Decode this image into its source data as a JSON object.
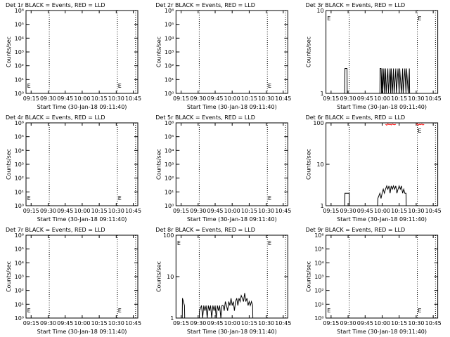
{
  "chart_data": [
    {
      "type": "line",
      "title": "Det 1r BLACK = Events, RED = LLD",
      "xlabel": "Start Time (30-Jan-18 09:11:40)",
      "ylabel": "Counts/sec",
      "ylog": true,
      "xlim": [
        10.5,
        109
      ],
      "ylim": [
        1,
        1000000
      ],
      "xticks": [
        {
          "value": 15,
          "label": "09:15"
        },
        {
          "value": 30,
          "label": "09:30"
        },
        {
          "value": 45,
          "label": "09:45"
        },
        {
          "value": 60,
          "label": "10:00"
        },
        {
          "value": 75,
          "label": "10:15"
        },
        {
          "value": 90,
          "label": "10:30"
        },
        {
          "value": 105,
          "label": "10:45"
        }
      ],
      "yticks": [
        {
          "value": 1,
          "label": "10⁰"
        },
        {
          "value": 10,
          "label": "10¹"
        },
        {
          "value": 100,
          "label": "10²"
        },
        {
          "value": 1000,
          "label": "10³"
        },
        {
          "value": 10000,
          "label": "10⁴"
        },
        {
          "value": 100000,
          "label": "10⁵"
        },
        {
          "value": 1000000,
          "label": "10⁶"
        }
      ],
      "vlines": [
        31,
        91,
        107
      ],
      "annotations": [
        {
          "text": "E",
          "x": 11.5,
          "position": "bottom"
        },
        {
          "text": "E",
          "x": 91.5,
          "position": "bottom"
        }
      ]
    },
    {
      "type": "line",
      "title": "Det 2r BLACK = Events, RED = LLD",
      "xlabel": "Start Time (30-Jan-18 09:11:40)",
      "ylabel": "Counts/sec",
      "ylog": true,
      "xlim": [
        10.5,
        109
      ],
      "ylim": [
        1,
        1000000
      ],
      "xticks": [
        {
          "value": 15,
          "label": "09:15"
        },
        {
          "value": 30,
          "label": "09:30"
        },
        {
          "value": 45,
          "label": "09:45"
        },
        {
          "value": 60,
          "label": "10:00"
        },
        {
          "value": 75,
          "label": "10:15"
        },
        {
          "value": 90,
          "label": "10:30"
        },
        {
          "value": 105,
          "label": "10:45"
        }
      ],
      "yticks": [
        {
          "value": 1,
          "label": "10⁰"
        },
        {
          "value": 10,
          "label": "10¹"
        },
        {
          "value": 100,
          "label": "10²"
        },
        {
          "value": 1000,
          "label": "10³"
        },
        {
          "value": 10000,
          "label": "10⁴"
        },
        {
          "value": 100000,
          "label": "10⁵"
        },
        {
          "value": 1000000,
          "label": "10⁶"
        }
      ],
      "vlines": [
        31,
        91,
        107
      ],
      "annotations": [
        {
          "text": "E",
          "x": 91.5,
          "position": "bottom"
        }
      ]
    },
    {
      "type": "line",
      "title": "Det 3r BLACK = Events, RED = LLD",
      "xlabel": "Start Time (30-Jan-18 09:11:40)",
      "ylabel": "Counts/sec",
      "ylog": true,
      "xlim": [
        10.5,
        109
      ],
      "ylim": [
        1,
        10
      ],
      "xticks": [
        {
          "value": 15,
          "label": "09:15"
        },
        {
          "value": 30,
          "label": "09:30"
        },
        {
          "value": 45,
          "label": "09:45"
        },
        {
          "value": 60,
          "label": "10:00"
        },
        {
          "value": 75,
          "label": "10:15"
        },
        {
          "value": 90,
          "label": "10:30"
        },
        {
          "value": 105,
          "label": "10:45"
        }
      ],
      "yticks": [
        1,
        10
      ],
      "vlines": [
        31,
        91,
        107
      ],
      "annotations": [
        {
          "text": "E",
          "x": 11.5,
          "position": "top"
        },
        {
          "text": "E",
          "x": 91.5,
          "position": "top"
        }
      ],
      "series": [
        {
          "color": "#000000",
          "x": [
            12,
            27,
            27.2,
            29,
            29.2,
            58,
            58.2,
            59,
            59.5,
            60,
            60.5,
            61.5,
            62,
            63,
            63.5,
            65,
            65.5,
            67,
            67.5,
            68,
            69,
            70,
            70.5,
            72,
            72.5,
            74,
            75,
            75.5,
            77,
            78,
            78.5,
            80,
            81,
            81.5,
            83,
            84,
            84.2,
            95
          ],
          "values": [
            1,
            1,
            2,
            2,
            1,
            1,
            2,
            2,
            1,
            2,
            1,
            2,
            1,
            2,
            1,
            2,
            1,
            2,
            1,
            2,
            1,
            2,
            1,
            2,
            1,
            2,
            1,
            2,
            1,
            2,
            1,
            2,
            1,
            2,
            1,
            2,
            1,
            1
          ]
        }
      ]
    },
    {
      "type": "line",
      "title": "Det 4r BLACK = Events, RED = LLD",
      "xlabel": "Start Time (30-Jan-18 09:11:40)",
      "ylabel": "Counts/sec",
      "ylog": true,
      "xlim": [
        10.5,
        109
      ],
      "ylim": [
        1,
        1000000
      ],
      "xticks": [
        {
          "value": 15,
          "label": "09:15"
        },
        {
          "value": 30,
          "label": "09:30"
        },
        {
          "value": 45,
          "label": "09:45"
        },
        {
          "value": 60,
          "label": "10:00"
        },
        {
          "value": 75,
          "label": "10:15"
        },
        {
          "value": 90,
          "label": "10:30"
        },
        {
          "value": 105,
          "label": "10:45"
        }
      ],
      "yticks": [
        {
          "value": 1,
          "label": "10⁰"
        },
        {
          "value": 10,
          "label": "10¹"
        },
        {
          "value": 100,
          "label": "10²"
        },
        {
          "value": 1000,
          "label": "10³"
        },
        {
          "value": 10000,
          "label": "10⁴"
        },
        {
          "value": 100000,
          "label": "10⁵"
        },
        {
          "value": 1000000,
          "label": "10⁶"
        }
      ],
      "vlines": [
        31,
        91,
        107
      ],
      "annotations": [
        {
          "text": "E",
          "x": 11.5,
          "position": "bottom"
        },
        {
          "text": "E",
          "x": 91.5,
          "position": "bottom"
        }
      ]
    },
    {
      "type": "line",
      "title": "Det 5r BLACK = Events, RED = LLD",
      "xlabel": "Start Time (30-Jan-18 09:11:40)",
      "ylabel": "Counts/sec",
      "ylog": true,
      "xlim": [
        10.5,
        109
      ],
      "ylim": [
        1,
        1000000
      ],
      "xticks": [
        {
          "value": 15,
          "label": "09:15"
        },
        {
          "value": 30,
          "label": "09:30"
        },
        {
          "value": 45,
          "label": "09:45"
        },
        {
          "value": 60,
          "label": "10:00"
        },
        {
          "value": 75,
          "label": "10:15"
        },
        {
          "value": 90,
          "label": "10:30"
        },
        {
          "value": 105,
          "label": "10:45"
        }
      ],
      "yticks": [
        {
          "value": 1,
          "label": "10⁰"
        },
        {
          "value": 10,
          "label": "10¹"
        },
        {
          "value": 100,
          "label": "10²"
        },
        {
          "value": 1000,
          "label": "10³"
        },
        {
          "value": 10000,
          "label": "10⁴"
        },
        {
          "value": 100000,
          "label": "10⁵"
        },
        {
          "value": 1000000,
          "label": "10⁶"
        }
      ],
      "vlines": [
        31,
        91,
        107
      ],
      "annotations": [
        {
          "text": "E",
          "x": 91.5,
          "position": "bottom"
        }
      ]
    },
    {
      "type": "line",
      "title": "Det 6r BLACK = Events, RED = LLD",
      "xlabel": "Start Time (30-Jan-18 09:11:40)",
      "ylabel": "Counts/sec",
      "ylog": true,
      "xlim": [
        10.5,
        109
      ],
      "ylim": [
        1,
        100
      ],
      "xticks": [
        {
          "value": 15,
          "label": "09:15"
        },
        {
          "value": 30,
          "label": "09:30"
        },
        {
          "value": 45,
          "label": "09:45"
        },
        {
          "value": 60,
          "label": "10:00"
        },
        {
          "value": 75,
          "label": "10:15"
        },
        {
          "value": 90,
          "label": "10:30"
        },
        {
          "value": 105,
          "label": "10:45"
        }
      ],
      "yticks": [
        1,
        10,
        100
      ],
      "vlines": [
        31,
        91,
        107
      ],
      "annotations": [
        {
          "text": "E",
          "x": 91.5,
          "position": "top"
        }
      ],
      "series": [
        {
          "color": "#000000",
          "x": [
            12,
            27,
            27.2,
            31,
            31.2,
            56,
            56.2,
            58,
            59,
            60,
            61,
            62,
            63,
            64,
            65,
            66,
            67,
            68,
            69,
            70,
            71,
            72,
            73,
            74,
            75,
            76,
            77,
            78,
            79,
            80,
            81,
            81.2,
            95
          ],
          "values": [
            1,
            1,
            2,
            2,
            1,
            1,
            1.5,
            2,
            1.5,
            2,
            2.5,
            2,
            2.5,
            3,
            2.5,
            3,
            2,
            3,
            2.5,
            3,
            2.5,
            3,
            2,
            2.5,
            3,
            2.5,
            3,
            2,
            2.5,
            2,
            2,
            1,
            1
          ]
        },
        {
          "color": "#ff0000",
          "x": [
            63,
            64,
            65,
            66,
            67,
            68,
            69,
            70,
            71,
            72,
            80,
            90,
            91,
            92,
            93,
            94,
            95,
            96,
            97
          ],
          "values": [
            92,
            88,
            95,
            90,
            93,
            89,
            94,
            91,
            90,
            93,
            null,
            91,
            95,
            88,
            93,
            90,
            94,
            89,
            92
          ]
        }
      ]
    },
    {
      "type": "line",
      "title": "Det 7r BLACK = Events, RED = LLD",
      "xlabel": "Start Time (30-Jan-18 09:11:40)",
      "ylabel": "Counts/sec",
      "ylog": true,
      "xlim": [
        10.5,
        109
      ],
      "ylim": [
        1,
        1000000
      ],
      "xticks": [
        {
          "value": 15,
          "label": "09:15"
        },
        {
          "value": 30,
          "label": "09:30"
        },
        {
          "value": 45,
          "label": "09:45"
        },
        {
          "value": 60,
          "label": "10:00"
        },
        {
          "value": 75,
          "label": "10:15"
        },
        {
          "value": 90,
          "label": "10:30"
        },
        {
          "value": 105,
          "label": "10:45"
        }
      ],
      "yticks": [
        {
          "value": 1,
          "label": "10⁰"
        },
        {
          "value": 10,
          "label": "10¹"
        },
        {
          "value": 100,
          "label": "10²"
        },
        {
          "value": 1000,
          "label": "10³"
        },
        {
          "value": 10000,
          "label": "10⁴"
        },
        {
          "value": 100000,
          "label": "10⁵"
        },
        {
          "value": 1000000,
          "label": "10⁶"
        }
      ],
      "vlines": [
        31,
        91,
        107
      ],
      "annotations": [
        {
          "text": "E",
          "x": 11.5,
          "position": "bottom"
        },
        {
          "text": "E",
          "x": 91.5,
          "position": "bottom"
        }
      ]
    },
    {
      "type": "line",
      "title": "Det 8r BLACK = Events, RED = LLD",
      "xlabel": "Start Time (30-Jan-18 09:11:40)",
      "ylabel": "Counts/sec",
      "ylog": true,
      "xlim": [
        10.5,
        109
      ],
      "ylim": [
        1,
        100
      ],
      "xticks": [
        {
          "value": 15,
          "label": "09:15"
        },
        {
          "value": 30,
          "label": "09:30"
        },
        {
          "value": 45,
          "label": "09:45"
        },
        {
          "value": 60,
          "label": "10:00"
        },
        {
          "value": 75,
          "label": "10:15"
        },
        {
          "value": 90,
          "label": "10:30"
        },
        {
          "value": 105,
          "label": "10:45"
        }
      ],
      "yticks": [
        1,
        10,
        100
      ],
      "vlines": [
        31,
        91,
        107
      ],
      "annotations": [
        {
          "text": "E",
          "x": 11.5,
          "position": "top"
        },
        {
          "text": "E",
          "x": 91.5,
          "position": "top"
        }
      ],
      "series": [
        {
          "color": "#000000",
          "x": [
            12,
            16,
            16.2,
            18,
            18.2,
            31,
            31.2,
            33,
            34,
            35,
            36,
            37,
            38,
            39,
            40,
            41,
            42,
            43,
            44,
            45,
            46,
            47,
            48,
            49,
            50,
            51,
            52,
            53,
            54,
            55,
            56,
            57,
            58,
            59,
            60,
            61,
            62,
            63,
            64,
            65,
            66,
            67,
            68,
            69,
            70,
            71,
            72,
            73,
            74,
            75,
            76,
            77,
            78,
            78.2,
            95
          ],
          "values": [
            1,
            1,
            3,
            2,
            1,
            1,
            1.5,
            2,
            1,
            2,
            1.5,
            2,
            1,
            2,
            1.5,
            2,
            1,
            2,
            1.5,
            2,
            1,
            2,
            1.5,
            2,
            1,
            2,
            2,
            1.5,
            2.5,
            2,
            1.5,
            2.5,
            2,
            3,
            2,
            2.5,
            1.5,
            2.5,
            3,
            2,
            3,
            2.5,
            3.5,
            3,
            2.5,
            4,
            2.5,
            3,
            2,
            2.5,
            2,
            2.5,
            2,
            1,
            1
          ]
        }
      ]
    },
    {
      "type": "line",
      "title": "Det 9r BLACK = Events, RED = LLD",
      "xlabel": "Start Time (30-Jan-18 09:11:40)",
      "ylabel": "Counts/sec",
      "ylog": true,
      "xlim": [
        10.5,
        109
      ],
      "ylim": [
        1,
        1000000
      ],
      "xticks": [
        {
          "value": 15,
          "label": "09:15"
        },
        {
          "value": 30,
          "label": "09:30"
        },
        {
          "value": 45,
          "label": "09:45"
        },
        {
          "value": 60,
          "label": "10:00"
        },
        {
          "value": 75,
          "label": "10:15"
        },
        {
          "value": 90,
          "label": "10:30"
        },
        {
          "value": 105,
          "label": "10:45"
        }
      ],
      "yticks": [
        {
          "value": 1,
          "label": "10⁰"
        },
        {
          "value": 10,
          "label": "10¹"
        },
        {
          "value": 100,
          "label": "10²"
        },
        {
          "value": 1000,
          "label": "10³"
        },
        {
          "value": 10000,
          "label": "10⁴"
        },
        {
          "value": 100000,
          "label": "10⁵"
        },
        {
          "value": 1000000,
          "label": "10⁶"
        }
      ],
      "vlines": [
        31,
        91,
        107
      ],
      "annotations": [
        {
          "text": "E",
          "x": 11.5,
          "position": "bottom"
        },
        {
          "text": "E",
          "x": 91.5,
          "position": "bottom"
        }
      ]
    }
  ]
}
